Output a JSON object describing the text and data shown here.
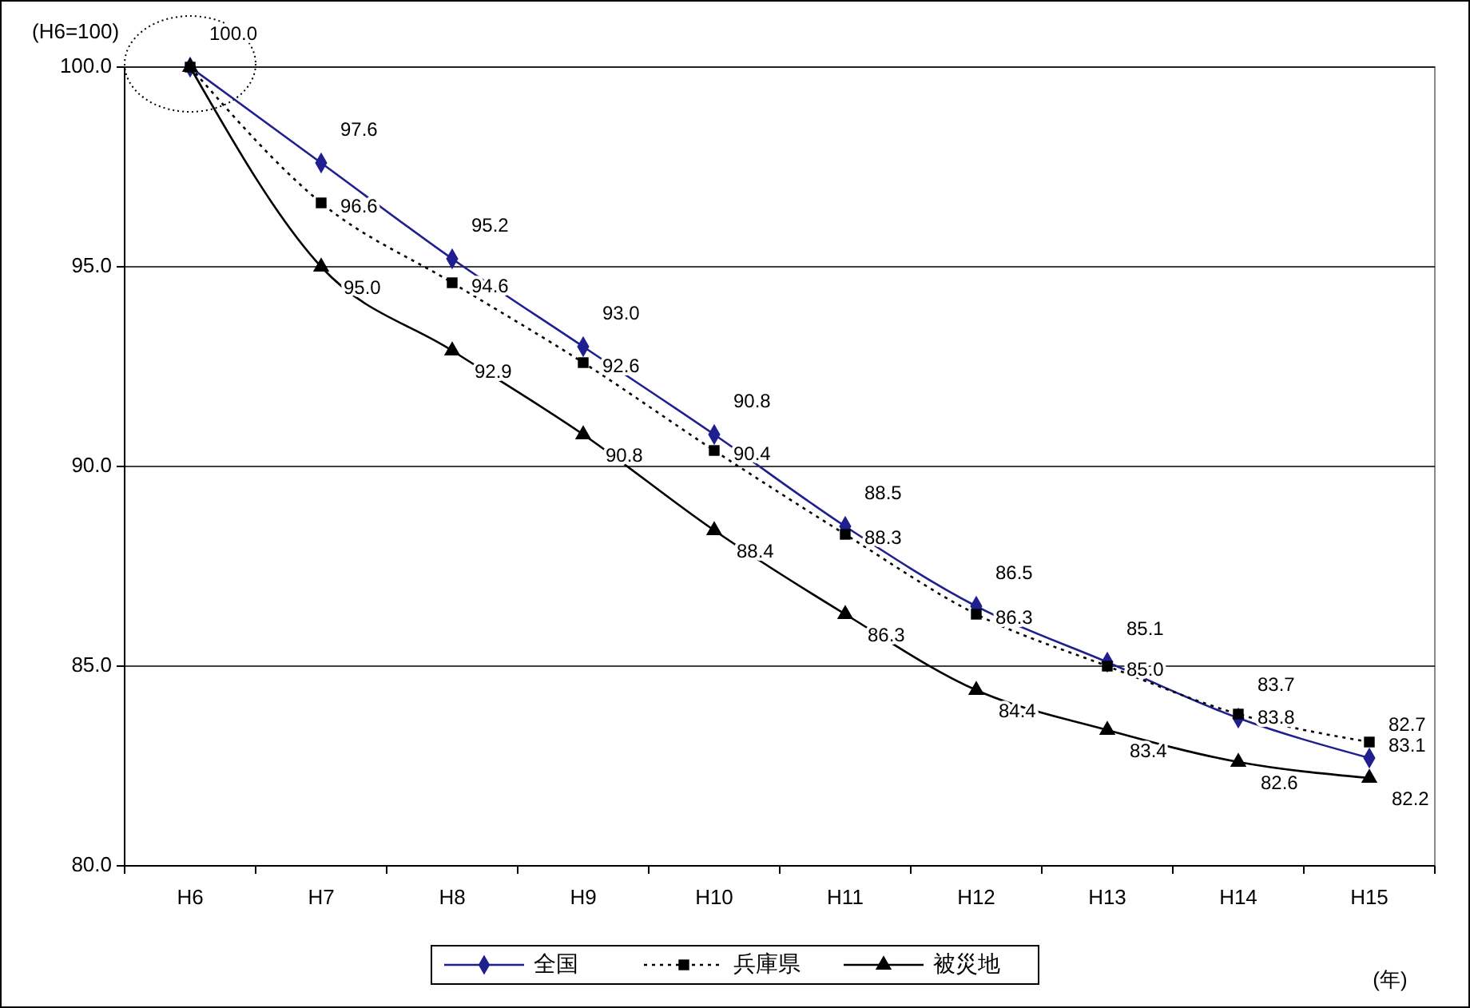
{
  "chart_data": {
    "type": "line",
    "ylabel": "(H6=100)",
    "xlabel": "(年)",
    "categories": [
      "H6",
      "H7",
      "H8",
      "H9",
      "H10",
      "H11",
      "H12",
      "H13",
      "H14",
      "H15"
    ],
    "series": [
      {
        "name": "全国",
        "color": "#1f1f8f",
        "marker": "diamond",
        "line_style": "solid",
        "values": [
          100.0,
          97.6,
          95.2,
          93.0,
          90.8,
          88.5,
          86.5,
          85.1,
          83.7,
          82.7
        ],
        "value_labels": [
          "100.0",
          "97.6",
          "95.2",
          "93.0",
          "90.8",
          "88.5",
          "86.5",
          "85.1",
          "83.7",
          "82.7"
        ]
      },
      {
        "name": "兵庫県",
        "color": "#000000",
        "marker": "square",
        "line_style": "dotted",
        "values": [
          100.0,
          96.6,
          94.6,
          92.6,
          90.4,
          88.3,
          86.3,
          85.0,
          83.8,
          83.1
        ],
        "value_labels": [
          null,
          "96.6",
          "94.6",
          "92.6",
          "90.4",
          "88.3",
          "86.3",
          "85.0",
          "83.8",
          "83.1"
        ]
      },
      {
        "name": "被災地",
        "color": "#000000",
        "marker": "triangle",
        "line_style": "solid",
        "values": [
          100.0,
          95.0,
          92.9,
          90.8,
          88.4,
          86.3,
          84.4,
          83.4,
          82.6,
          82.2
        ],
        "value_labels": [
          null,
          "95.0",
          "92.9",
          "90.8",
          "88.4",
          "86.3",
          "84.4",
          "83.4",
          "82.6",
          "82.2"
        ]
      }
    ],
    "ylim": [
      80,
      100
    ],
    "yticks": [
      {
        "value": 80,
        "label": "80.0"
      },
      {
        "value": 85,
        "label": "85.0"
      },
      {
        "value": 90,
        "label": "90.0"
      },
      {
        "value": 95,
        "label": "95.0"
      },
      {
        "value": 100,
        "label": "100.0"
      }
    ],
    "grid": "y",
    "legend": "bottom"
  }
}
